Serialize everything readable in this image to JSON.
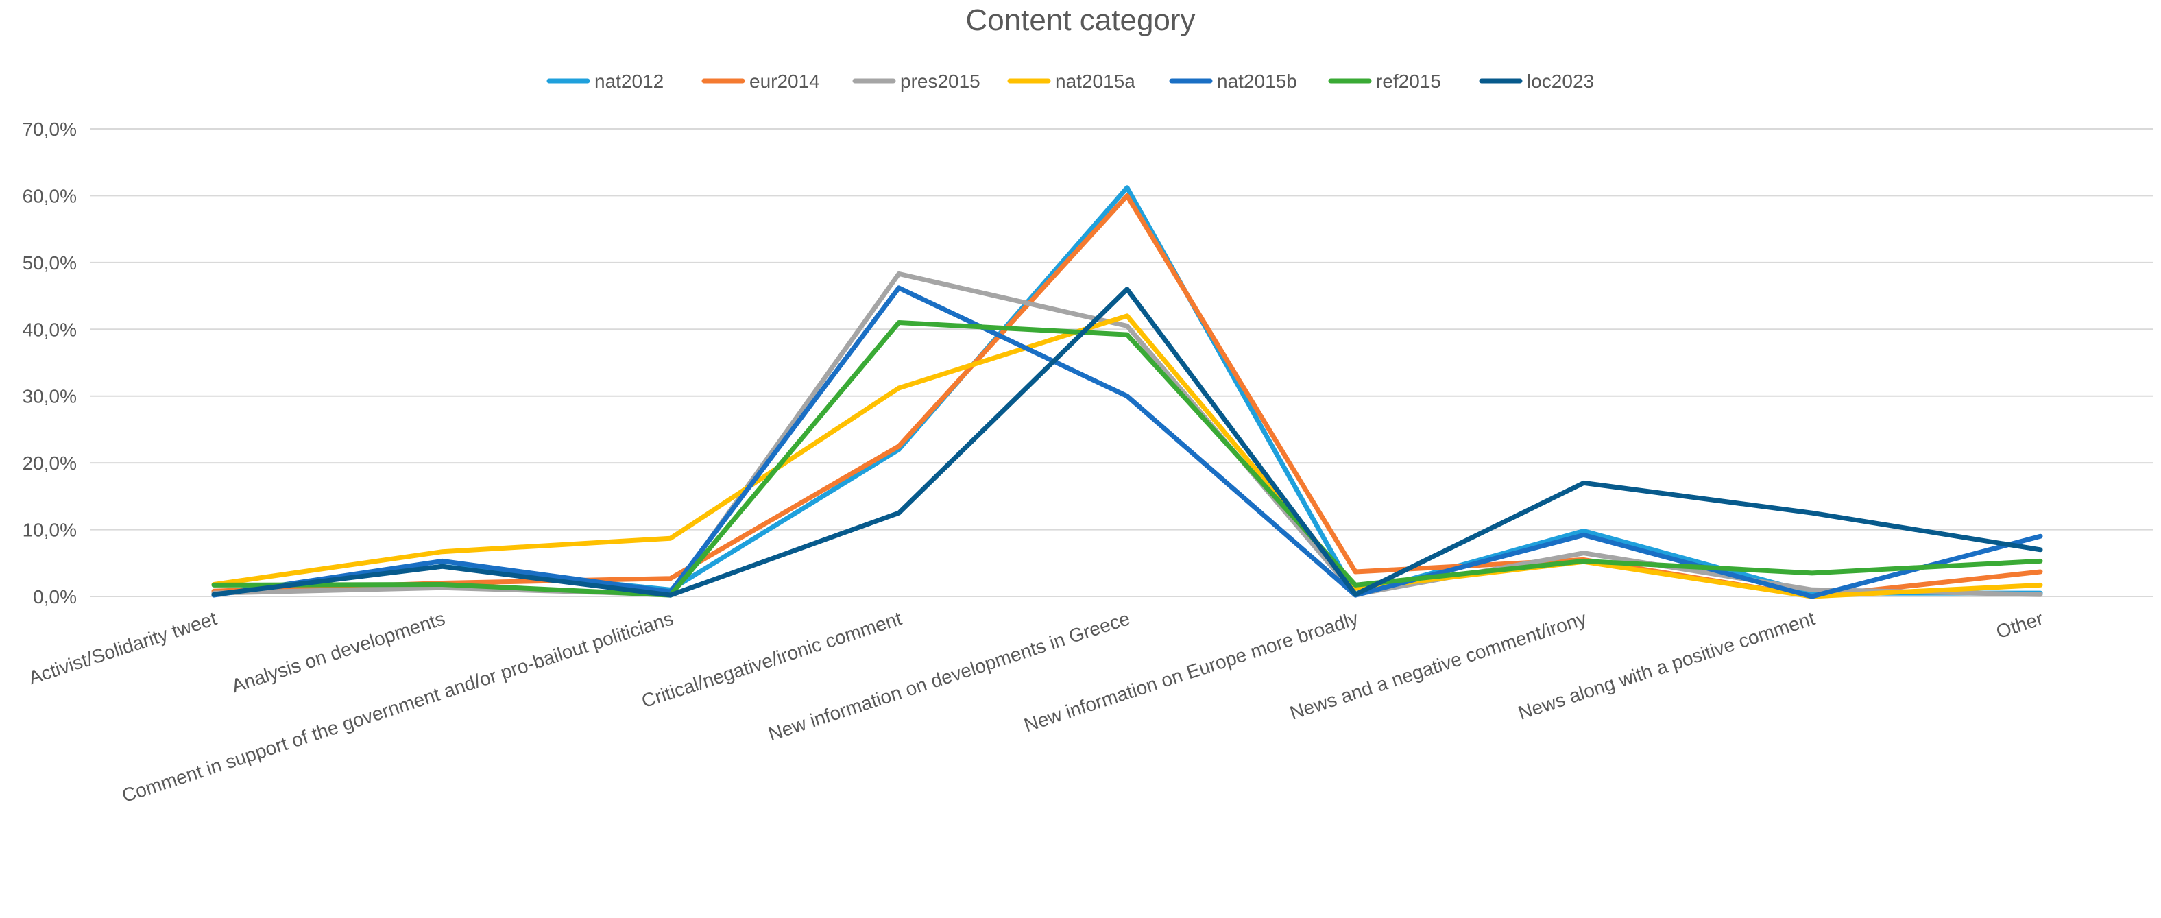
{
  "chart_data": {
    "type": "line",
    "title": "Content category",
    "xlabel": "",
    "ylabel": "",
    "ylim": [
      0,
      70
    ],
    "y_ticks": [
      "0,0%",
      "10,0%",
      "20,0%",
      "30,0%",
      "40,0%",
      "50,0%",
      "60,0%",
      "70,0%"
    ],
    "grid": true,
    "legend_position": "top",
    "categories": [
      "Activist/Solidarity tweet",
      "Analysis on developments",
      "Comment in support of the government and/or pro-bailout politicians",
      "Critical/negative/ironic comment",
      "New information on developments in Greece",
      "New information on Europe more broadly",
      "News and a negative comment/irony",
      "News along with a positive comment",
      "Other"
    ],
    "series": [
      {
        "name": "nat2012",
        "color": "#1fa0dc",
        "values": [
          0.5,
          4.5,
          1.0,
          22.0,
          61.2,
          0.3,
          9.8,
          0.5,
          0.5
        ]
      },
      {
        "name": "eur2014",
        "color": "#f47a30",
        "values": [
          0.8,
          2.0,
          2.7,
          22.5,
          60.0,
          3.7,
          5.5,
          0.0,
          3.7
        ]
      },
      {
        "name": "pres2015",
        "color": "#a5a5a5",
        "values": [
          0.5,
          1.3,
          0.3,
          48.3,
          40.5,
          0.3,
          6.5,
          1.0,
          0.3
        ]
      },
      {
        "name": "nat2015a",
        "color": "#ffc000",
        "values": [
          1.8,
          6.7,
          8.7,
          31.2,
          42.0,
          1.2,
          5.2,
          0.0,
          1.7
        ]
      },
      {
        "name": "nat2015b",
        "color": "#1a6fc4",
        "values": [
          0.2,
          5.3,
          0.7,
          46.2,
          30.0,
          0.2,
          9.2,
          0.0,
          9.0
        ]
      },
      {
        "name": "ref2015",
        "color": "#3aaa35",
        "values": [
          1.7,
          1.8,
          0.2,
          41.0,
          39.2,
          1.7,
          5.3,
          3.5,
          5.3
        ]
      },
      {
        "name": "loc2023",
        "color": "#075a8c",
        "values": [
          0.3,
          4.5,
          0.2,
          12.5,
          46.0,
          0.3,
          17.0,
          12.5,
          7.0
        ]
      }
    ]
  }
}
